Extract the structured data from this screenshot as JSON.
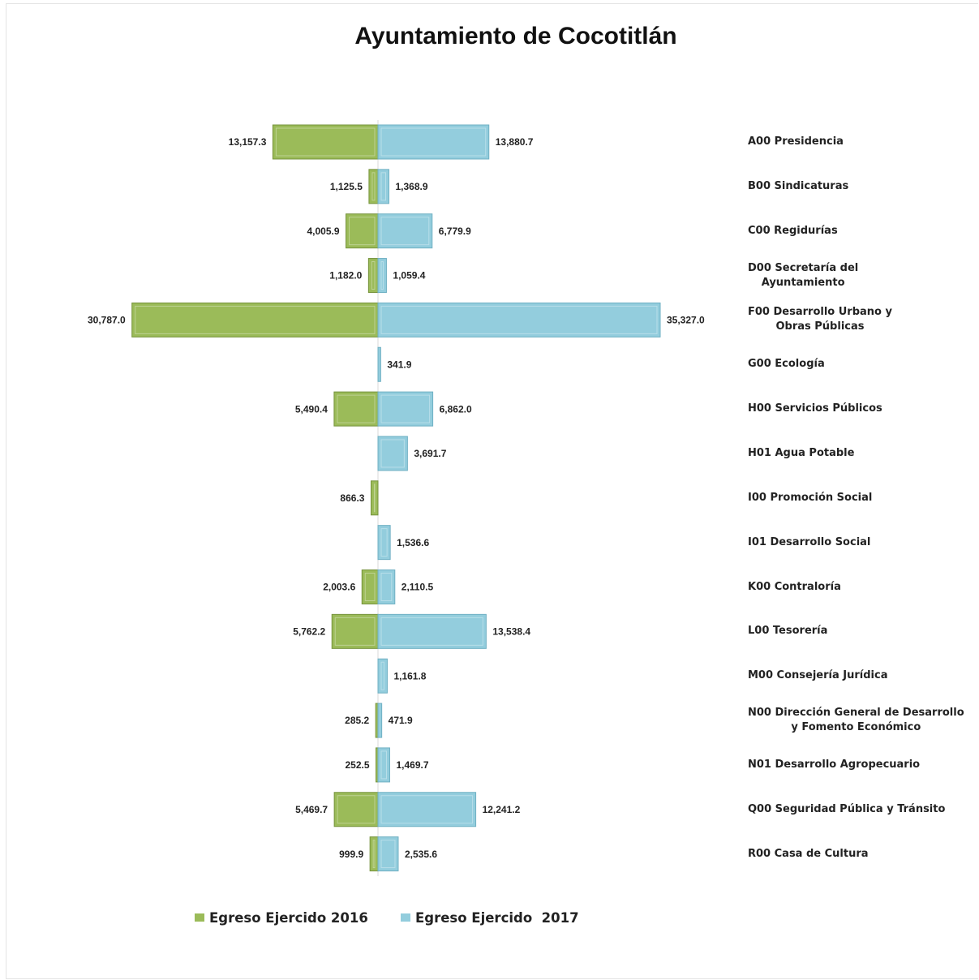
{
  "chart_data": {
    "type": "diverging-bar",
    "title": "Ayuntamiento de Cocotitlán",
    "categories": [
      "A00 Presidencia",
      "B00 Sindicaturas",
      "C00 Regidurías",
      "D00 Secretaría del\nAyuntamiento",
      "F00 Desarrollo Urbano y\nObras Públicas",
      "G00 Ecología",
      "H00 Servicios Públicos",
      "H01 Agua Potable",
      "I00 Promoción Social",
      "I01 Desarrollo Social",
      "K00 Contraloría",
      "L00 Tesorería",
      "M00 Consejería Jurídica",
      "N00 Dirección General de Desarrollo\ny Fomento Económico",
      "N01 Desarrollo Agropecuario",
      "Q00 Seguridad Pública y Tránsito",
      "R00 Casa de Cultura"
    ],
    "series": [
      {
        "name": "Egreso Ejercido 2016",
        "color": "#9bbb59",
        "side": "left",
        "values": [
          13157.3,
          1125.5,
          4005.9,
          1182.0,
          30787.0,
          null,
          5490.4,
          null,
          866.3,
          null,
          2003.6,
          5762.2,
          null,
          285.2,
          252.5,
          5469.7,
          999.9
        ],
        "value_labels": [
          "13,157.3",
          "1,125.5",
          "4,005.9",
          "1,182.0",
          "30,787.0",
          null,
          "5,490.4",
          null,
          "866.3",
          null,
          "2,003.6",
          "5,762.2",
          null,
          "285.2",
          "252.5",
          "5,469.7",
          "999.9"
        ]
      },
      {
        "name": "Egreso Ejercido  2017",
        "color": "#93cddd",
        "side": "right",
        "values": [
          13880.7,
          1368.9,
          6779.9,
          1059.4,
          35327.0,
          341.9,
          6862.0,
          3691.7,
          null,
          1536.6,
          2110.5,
          13538.4,
          1161.8,
          471.9,
          1469.7,
          12241.2,
          2535.6
        ],
        "value_labels": [
          "13,880.7",
          "1,368.9",
          "6,779.9",
          "1,059.4",
          "35,327.0",
          "341.9",
          "6,862.0",
          "3,691.7",
          null,
          "1,536.6",
          "2,110.5",
          "13,538.4",
          "1,161.8",
          "471.9",
          "1,469.7",
          "12,241.2",
          "2,535.6"
        ]
      }
    ]
  }
}
